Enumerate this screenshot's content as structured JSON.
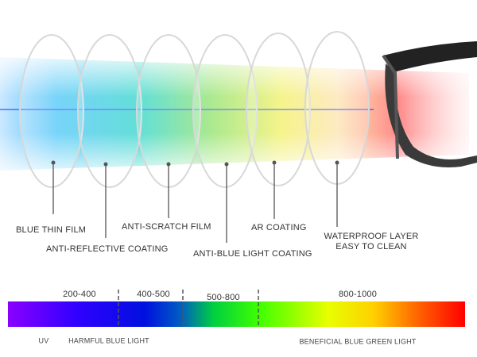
{
  "layers": [
    {
      "label": [
        "BLUE THIN FILM"
      ]
    },
    {
      "label": [
        "ANTI-REFLECTIVE COATING"
      ]
    },
    {
      "label": [
        "ANTI-SCRATCH FILM"
      ]
    },
    {
      "label": [
        "ANTI-BLUE LIGHT COATING"
      ]
    },
    {
      "label": [
        "AR COATING"
      ]
    },
    {
      "label": [
        "WATERPROOF LAYER",
        "EASY TO CLEAN"
      ]
    }
  ],
  "spectrum": {
    "ranges": [
      "200-400",
      "400-500",
      "500-800",
      "800-1000"
    ],
    "zones": [
      "UV",
      "HARMFUL BLUE LIGHT",
      "BENEFICIAL BLUE GREEN LIGHT"
    ]
  }
}
